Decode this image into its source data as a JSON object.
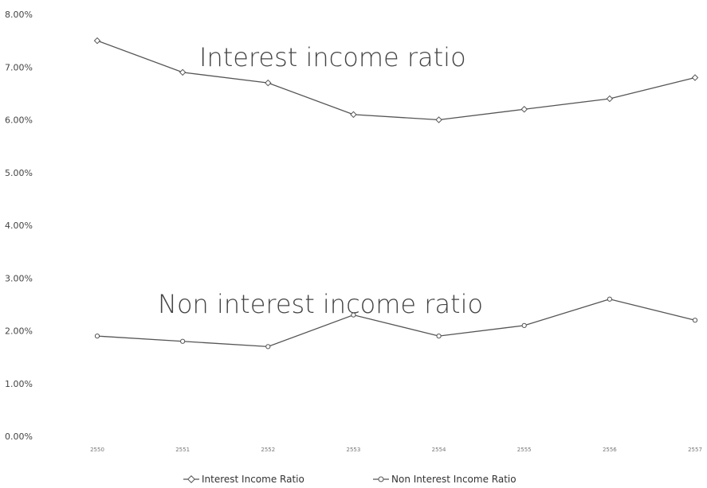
{
  "chart_data": {
    "type": "line",
    "title": "",
    "xlabel": "",
    "ylabel": "",
    "categories": [
      "2550",
      "2551",
      "2552",
      "2553",
      "2554",
      "2555",
      "2556",
      "2557"
    ],
    "ylim": [
      0,
      0.08
    ],
    "y_ticks": [
      "0.00%",
      "1.00%",
      "2.00%",
      "3.00%",
      "4.00%",
      "5.00%",
      "6.00%",
      "7.00%",
      "8.00%"
    ],
    "grid": false,
    "legend_position": "bottom",
    "series": [
      {
        "name": "Interest Income Ratio",
        "color": "#555555",
        "marker": "diamond",
        "values": [
          0.075,
          0.069,
          0.067,
          0.061,
          0.06,
          0.062,
          0.064,
          0.068
        ]
      },
      {
        "name": "Non Interest Income Ratio",
        "color": "#555555",
        "marker": "circle",
        "values": [
          0.019,
          0.018,
          0.017,
          0.023,
          0.019,
          0.021,
          0.026,
          0.022
        ]
      }
    ],
    "annotations": [
      "Interest income ratio",
      "Non interest income ratio"
    ]
  }
}
